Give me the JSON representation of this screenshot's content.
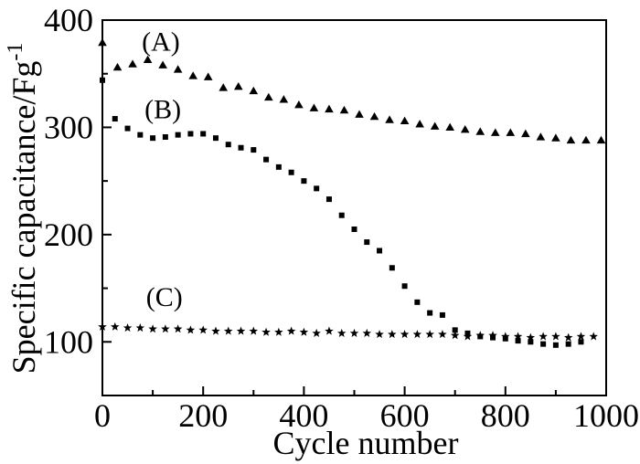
{
  "chart_data": {
    "type": "scatter",
    "title": "",
    "xlabel": "Cycle number",
    "ylabel": "Specific capacitance/Fg",
    "ylabel_superscript": "-1",
    "xlim": [
      0,
      1000
    ],
    "ylim": [
      50,
      400
    ],
    "x_major_ticks": [
      0,
      200,
      400,
      600,
      800,
      1000
    ],
    "x_minor_ticks": [
      100,
      300,
      500,
      700,
      900
    ],
    "y_major_ticks": [
      100,
      200,
      300,
      400
    ],
    "y_minor_ticks": [
      150,
      250,
      350
    ],
    "grid": false,
    "legend_position": "inline-labels",
    "marker_color": "#000000",
    "frame_color": "#000000",
    "background_color": "#ffffff",
    "series": [
      {
        "name": "A",
        "label": "(A)",
        "marker": "triangle",
        "label_at": [
          116,
          380
        ],
        "x": [
          0,
          30,
          60,
          90,
          120,
          150,
          180,
          210,
          240,
          270,
          300,
          330,
          360,
          390,
          420,
          450,
          480,
          510,
          540,
          570,
          600,
          630,
          660,
          690,
          720,
          750,
          780,
          810,
          840,
          870,
          900,
          930,
          960,
          990
        ],
        "y": [
          379,
          356,
          359,
          363,
          358,
          354,
          348,
          347,
          337,
          338,
          334,
          328,
          326,
          321,
          318,
          317,
          316,
          312,
          310,
          307,
          306,
          303,
          301,
          300,
          298,
          296,
          295,
          295,
          294,
          291,
          290,
          288,
          288,
          288
        ]
      },
      {
        "name": "B",
        "label": "(B)",
        "marker": "square",
        "label_at": [
          120,
          317
        ],
        "x": [
          0,
          25,
          50,
          75,
          100,
          125,
          150,
          175,
          200,
          225,
          250,
          275,
          300,
          325,
          350,
          375,
          400,
          425,
          450,
          475,
          500,
          525,
          550,
          575,
          600,
          625,
          650,
          675,
          700,
          725,
          750,
          775,
          800,
          825,
          850,
          875,
          900,
          925,
          950
        ],
        "y": [
          344,
          308,
          299,
          293,
          290,
          291,
          293,
          294,
          294,
          290,
          284,
          281,
          279,
          270,
          263,
          258,
          250,
          243,
          233,
          218,
          205,
          193,
          185,
          169,
          152,
          137,
          127,
          125,
          111,
          108,
          105,
          104,
          103,
          101,
          100,
          98,
          97,
          98,
          100
        ]
      },
      {
        "name": "C",
        "label": "(C)",
        "marker": "star",
        "label_at": [
          123,
          142
        ],
        "x": [
          0,
          25,
          50,
          75,
          100,
          125,
          150,
          175,
          200,
          225,
          250,
          275,
          300,
          325,
          350,
          375,
          400,
          425,
          450,
          475,
          500,
          525,
          550,
          575,
          600,
          625,
          650,
          675,
          700,
          725,
          750,
          775,
          800,
          825,
          850,
          875,
          900,
          925,
          950,
          975
        ],
        "y": [
          114,
          114,
          113,
          113,
          112,
          112,
          112,
          111,
          111,
          110,
          110,
          110,
          110,
          109,
          109,
          110,
          109,
          108,
          110,
          108,
          108,
          108,
          107,
          107,
          107,
          107,
          107,
          107,
          106,
          105,
          106,
          106,
          105,
          105,
          104,
          105,
          105,
          104,
          105,
          105
        ]
      }
    ]
  }
}
